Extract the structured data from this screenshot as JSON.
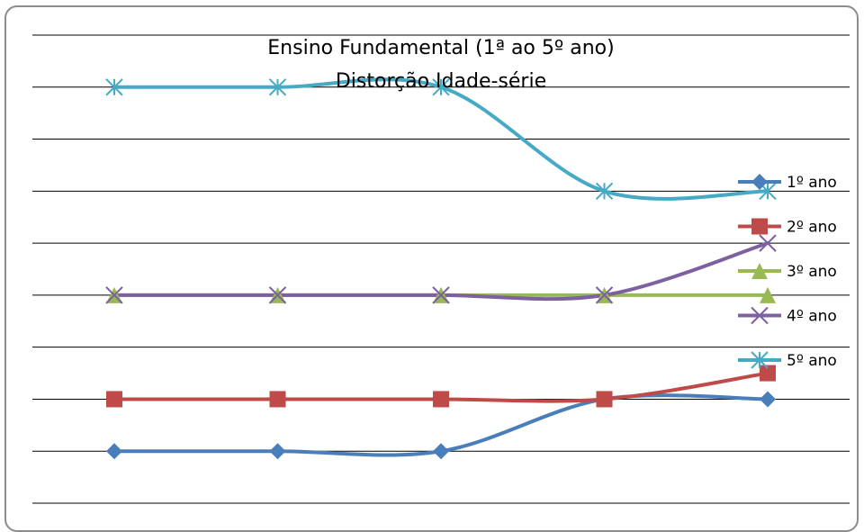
{
  "chart_data": {
    "type": "line",
    "title": "Ensino Fundamental (1ª ao 5º ano)",
    "subtitle": "Distorção Idade-série",
    "xlabel": "",
    "ylabel": "",
    "x_count": 5,
    "ylim": [
      0,
      9
    ],
    "grid": true,
    "legend_position": "right",
    "series": [
      {
        "name": "1º ano",
        "values": [
          1,
          1,
          1,
          2,
          2
        ],
        "color": "#4a7ebb",
        "marker": "diamond"
      },
      {
        "name": "2º ano",
        "values": [
          2,
          2,
          2,
          2,
          2.5
        ],
        "color": "#be4b48",
        "marker": "square"
      },
      {
        "name": "3º ano",
        "values": [
          4,
          4,
          4,
          4,
          4
        ],
        "color": "#98b954",
        "marker": "triangle"
      },
      {
        "name": "4º ano",
        "values": [
          4,
          4,
          4,
          4,
          5
        ],
        "color": "#7d60a0",
        "marker": "x"
      },
      {
        "name": "5º ano",
        "values": [
          8,
          8,
          8,
          6,
          6
        ],
        "color": "#46aac5",
        "marker": "star"
      }
    ]
  }
}
